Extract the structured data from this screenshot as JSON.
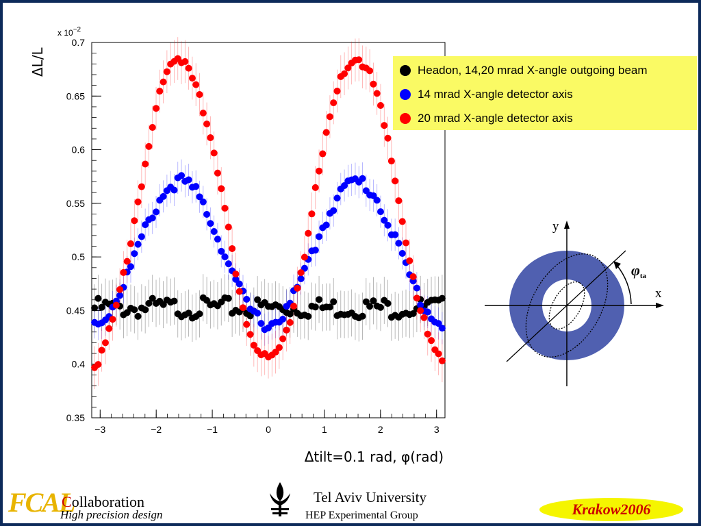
{
  "chart_data": {
    "type": "scatter",
    "multiplier_label": "x 10",
    "multiplier_exp": "−2",
    "ylabel": "ΔL/L",
    "xlabel": "Δtilt=0.1 rad, φ(rad)",
    "xlim": [
      -3.15,
      3.15
    ],
    "ylim": [
      0.35,
      0.7
    ],
    "xticks": [
      -3,
      -2,
      -1,
      0,
      1,
      2,
      3
    ],
    "xtick_labels": [
      "−3",
      "−2",
      "−1",
      "0",
      "1",
      "2",
      "3"
    ],
    "yticks": [
      0.35,
      0.4,
      0.45,
      0.5,
      0.55,
      0.6,
      0.65,
      0.7
    ],
    "ytick_labels": [
      "0.35",
      "0.4",
      "0.45",
      "0.5",
      "0.55",
      "0.6",
      "0.65",
      "0.7"
    ],
    "legend_position": "top-right",
    "series": [
      {
        "name": "Headon, 14,20 mrad X-angle outgoing beam",
        "color": "#000000",
        "baseline": 0.4525,
        "amplitude": 0,
        "noise": 0.006,
        "error": 0.022
      },
      {
        "name": "14 mrad X-angle detector axis",
        "color": "#0000ff",
        "baseline": 0.4375,
        "amplitude": 0.1325,
        "noise": 0.004,
        "error": 0.015
      },
      {
        "name": "20 mrad X-angle detector axis",
        "color": "#ff0000",
        "baseline": 0.4025,
        "amplitude": 0.2825,
        "noise": 0.004,
        "error": 0.02
      }
    ],
    "shape": "sin^2(phi)",
    "points_per_series": 97
  },
  "diagram": {
    "y_label": "y",
    "x_label": "x",
    "angle_label": "φ",
    "angle_subscript": "ta",
    "ring_color": "#5060b0"
  },
  "footer": {
    "logo": "FCAL",
    "collab_first": "C",
    "collab_rest": "ollaboration",
    "tagline": "High precision design",
    "university": "Tel Aviv University",
    "group": "HEP Experimental Group",
    "event_name": "Krakow",
    "event_year": "2006"
  },
  "colors": {
    "frame": "#0d2a5a",
    "legend_bg": "#fafa64",
    "badge_bg": "#f5f500",
    "badge_text": "#cc0000"
  }
}
